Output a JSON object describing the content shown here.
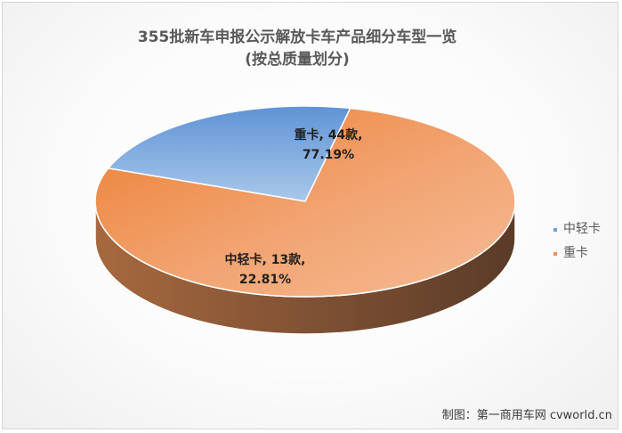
{
  "chart_data": {
    "type": "pie",
    "title": "355批新车申报公示解放卡车产品细分车型一览",
    "subtitle": "(按总质量划分)",
    "categories": [
      "中轻卡",
      "重卡"
    ],
    "values": [
      13,
      44
    ],
    "percentages": [
      "22.81%",
      "77.19%"
    ],
    "data_labels": [
      {
        "line1": "中轻卡, 13款,",
        "line2": "22.81%"
      },
      {
        "line1": "重卡, 44款,",
        "line2": "77.19%"
      }
    ],
    "colors": [
      "#6f9fd8",
      "#ee8f4f"
    ],
    "legend": {
      "position": "right",
      "items": [
        "中轻卡",
        "重卡"
      ]
    },
    "style": "3d"
  },
  "credit": "制图：第一商用车网 cvworld.cn"
}
